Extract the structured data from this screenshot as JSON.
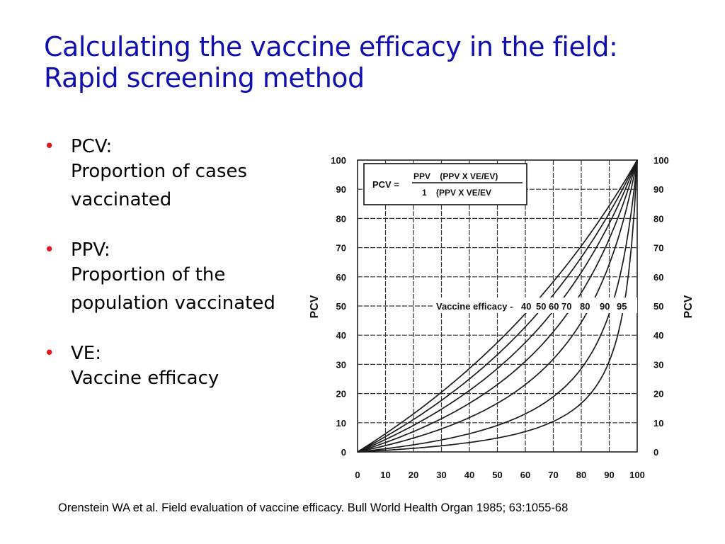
{
  "title": {
    "line1": "Calculating the vaccine efficacy in the field:",
    "line2": "Rapid screening method"
  },
  "bullets": [
    {
      "term": "PCV:",
      "description": "Proportion of cases vaccinated"
    },
    {
      "term": "PPV:",
      "description": "Proportion of the population vaccinated"
    },
    {
      "term": "VE:",
      "description": "Vaccine efficacy"
    }
  ],
  "bullet_symbol": "•",
  "colors": {
    "title": "#1010b0",
    "bullet": "#e11b22",
    "curves": "#1a1a1a"
  },
  "chart_data": {
    "type": "line",
    "formula": {
      "lhs": "PCV =",
      "numerator": "PPV    (PPV X VE/EV)",
      "denominator": "1    (PPV X VE/EV"
    },
    "curve_label_prefix": "Vaccine efficacy -",
    "ylabel_left": "PCV",
    "ylabel_right": "PCV",
    "xlim": [
      0,
      100
    ],
    "ylim": [
      0,
      100
    ],
    "x_ticks": [
      "0",
      "10",
      "20",
      "30",
      "40",
      "50",
      "60",
      "70",
      "80",
      "90",
      "100"
    ],
    "y_ticks": [
      "0",
      "10",
      "20",
      "30",
      "40",
      "50",
      "60",
      "70",
      "80",
      "90",
      "100"
    ],
    "grid": true,
    "series": [
      {
        "name": "40",
        "ve": 0.4
      },
      {
        "name": "50",
        "ve": 0.5
      },
      {
        "name": "60",
        "ve": 0.6
      },
      {
        "name": "70",
        "ve": 0.7
      },
      {
        "name": "80",
        "ve": 0.8
      },
      {
        "name": "90",
        "ve": 0.9
      },
      {
        "name": "95",
        "ve": 0.95
      }
    ]
  },
  "citation": "Orenstein WA et al. Field evaluation of vaccine efficacy. Bull World Health Organ 1985; 63:1055-68"
}
